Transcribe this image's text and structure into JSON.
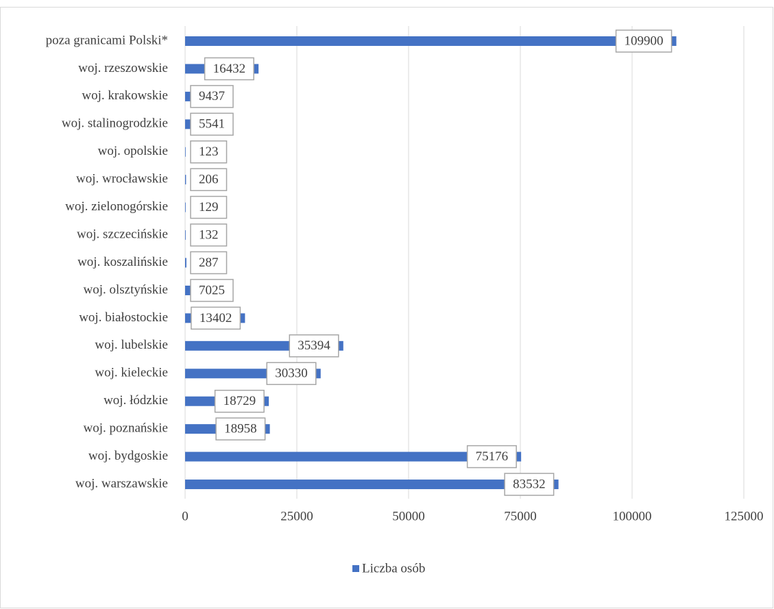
{
  "chart_data": {
    "type": "bar",
    "orientation": "horizontal",
    "categories": [
      "poza granicami Polski*",
      "woj. rzeszowskie",
      "woj. krakowskie",
      "woj. stalinogrodzkie",
      "woj. opolskie",
      "woj. wrocławskie",
      "woj. zielonogórskie",
      "woj. szczecińskie",
      "woj. koszalińskie",
      "woj. olsztyńskie",
      "woj. białostockie",
      "woj. lubelskie",
      "woj. kieleckie",
      "woj. łódzkie",
      "woj. poznańskie",
      "woj. bydgoskie",
      "woj. warszawskie"
    ],
    "series": [
      {
        "name": "Liczba osób",
        "color": "#4472c4",
        "values": [
          109900,
          16432,
          9437,
          5541,
          123,
          206,
          129,
          132,
          287,
          7025,
          13402,
          35394,
          30330,
          18729,
          18958,
          75176,
          83532
        ]
      }
    ],
    "xlim": [
      0,
      125000
    ],
    "xticks": [
      0,
      25000,
      50000,
      75000,
      100000,
      125000
    ],
    "grid": true,
    "legend": "bottom"
  }
}
